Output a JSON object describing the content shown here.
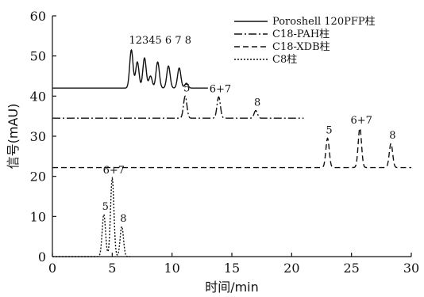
{
  "chart_data": {
    "type": "line",
    "title": "",
    "xlabel": "时间/min",
    "ylabel": "信号(mAU)",
    "xlim": [
      0,
      30
    ],
    "ylim": [
      0,
      60
    ],
    "x_ticks": [
      0,
      5,
      10,
      15,
      20,
      25,
      30
    ],
    "y_ticks": [
      10,
      20,
      30,
      40,
      50,
      60
    ],
    "grid": false,
    "legend_position": "top-right",
    "series": [
      {
        "name": "Poroshell 120PFP柱",
        "dash": "solid",
        "baseline": 42,
        "x_range": [
          0,
          13
        ],
        "peaks": [
          {
            "x": 6.6,
            "height": 51.5,
            "label": "1"
          },
          {
            "x": 7.1,
            "height": 48.5,
            "label": "2"
          },
          {
            "x": 7.7,
            "height": 49.5,
            "label": "3"
          },
          {
            "x": 8.2,
            "height": 45.0,
            "label": "4"
          },
          {
            "x": 8.8,
            "height": 48.5,
            "label": "5"
          },
          {
            "x": 9.7,
            "height": 47.5,
            "label": "6"
          },
          {
            "x": 10.6,
            "height": 47.0,
            "label": "7"
          },
          {
            "x": 11.2,
            "height": 43.2,
            "label": "8"
          }
        ],
        "peak_label_text": "12345 6 7 8"
      },
      {
        "name": "C18-PAH柱",
        "dash": "dashdot",
        "baseline": 34.5,
        "x_range": [
          0,
          21
        ],
        "peaks": [
          {
            "x": 11.1,
            "height": 40.0,
            "label": "5"
          },
          {
            "x": 13.9,
            "height": 39.8,
            "label": "6+7"
          },
          {
            "x": 17.0,
            "height": 36.4,
            "label": "8"
          }
        ]
      },
      {
        "name": "C18-XDB柱",
        "dash": "dashed",
        "baseline": 22.2,
        "x_range": [
          0,
          30
        ],
        "peaks": [
          {
            "x": 23.0,
            "height": 29.5,
            "label": "5"
          },
          {
            "x": 25.7,
            "height": 32.0,
            "label": "6+7"
          },
          {
            "x": 28.3,
            "height": 28.2,
            "label": "8"
          }
        ]
      },
      {
        "name": "C8柱",
        "dash": "dotted",
        "baseline": 0,
        "x_range": [
          0,
          6.5
        ],
        "peaks": [
          {
            "x": 4.3,
            "height": 10.5,
            "label": "5"
          },
          {
            "x": 5.0,
            "height": 19.5,
            "label": "6+7"
          },
          {
            "x": 5.8,
            "height": 7.5,
            "label": "8"
          }
        ]
      }
    ]
  }
}
